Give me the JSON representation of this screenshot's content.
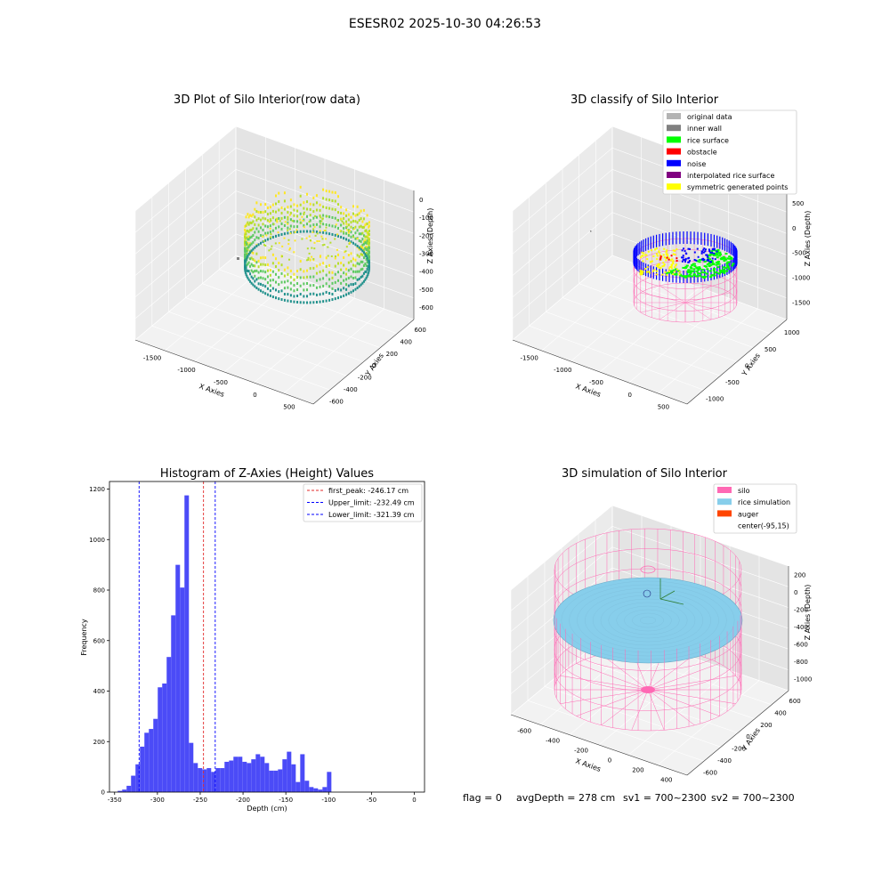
{
  "figure": {
    "suptitle": "ESESR02 2025-10-30 04:26:53",
    "footer": {
      "flag": "flag = 0",
      "avg_depth": "avgDepth = 278 cm",
      "sv1": "sv1 = 700~2300",
      "sv2": "sv2 = 700~2300"
    }
  },
  "colors": {
    "histogram_bar": "#4b4bf7",
    "first_peak": "#e32a2a",
    "limit_line": "#0000ff",
    "silo": "#ff69b4",
    "rice_simulation": "#87ceeb",
    "auger": "#ff4500"
  },
  "chart_data": [
    {
      "type": "scatter",
      "title": "3D Plot of Silo Interior(row data)",
      "xlabel": "X Axies",
      "ylabel": "Y Axies",
      "zlabel": "Z Axies (Depth)",
      "x_ticks": [
        "-1500",
        "-1000",
        "-500",
        "0",
        "500"
      ],
      "y_ticks": [
        "-600",
        "-400",
        "-200",
        "0",
        "200",
        "400",
        "600"
      ],
      "z_ticks": [
        "0",
        "-100",
        "-200",
        "-300",
        "-400",
        "-500",
        "-600"
      ]
    },
    {
      "type": "scatter",
      "title": "3D classify of Silo Interior",
      "xlabel": "X Axies",
      "ylabel": "Y Axies",
      "zlabel": "Z Axies (Depth)",
      "x_ticks": [
        "-1500",
        "-1000",
        "-500",
        "0",
        "500"
      ],
      "y_ticks": [
        "-1000",
        "-500",
        "0",
        "500",
        "1000"
      ],
      "z_ticks": [
        "500",
        "0",
        "-500",
        "-1000",
        "-1500"
      ],
      "legend": [
        {
          "label": "original data",
          "color": "#b3b3b3"
        },
        {
          "label": "inner wall",
          "color": "#808080"
        },
        {
          "label": "rice surface",
          "color": "#00ff00"
        },
        {
          "label": "obstacle",
          "color": "#ff0000"
        },
        {
          "label": "noise",
          "color": "#0000ff"
        },
        {
          "label": "interpolated rice surface",
          "color": "#800080"
        },
        {
          "label": "symmetric generated points",
          "color": "#ffff00"
        }
      ]
    },
    {
      "type": "bar",
      "title": "Histogram of Z-Axies (Height) Values",
      "xlabel": "Depth (cm)",
      "ylabel": "Frequency",
      "xlim": [
        -356,
        12
      ],
      "ylim": [
        0,
        1230
      ],
      "x_ticks": [
        -350,
        -300,
        -250,
        -200,
        -150,
        -100,
        -50,
        0
      ],
      "y_ticks": [
        0,
        200,
        400,
        600,
        800,
        1000,
        1200
      ],
      "bin_width": 5.2,
      "bin_start": -346.4,
      "values": [
        5,
        10,
        25,
        65,
        110,
        180,
        235,
        250,
        290,
        415,
        430,
        535,
        700,
        900,
        810,
        1175,
        195,
        115,
        95,
        90,
        95,
        80,
        95,
        95,
        120,
        125,
        140,
        140,
        120,
        115,
        130,
        150,
        140,
        115,
        85,
        85,
        90,
        130,
        160,
        110,
        40,
        150,
        45,
        20,
        15,
        10,
        20,
        80
      ],
      "vlines": [
        {
          "label": "first_peak: -246.17 cm",
          "x": -246.17,
          "color": "#e32a2a"
        },
        {
          "label": "Upper_limit: -232.49 cm",
          "x": -232.49,
          "color": "#0000ff"
        },
        {
          "label": "Lower_limit: -321.39 cm",
          "x": -321.39,
          "color": "#0000ff"
        }
      ]
    },
    {
      "type": "scatter",
      "title": "3D simulation of Silo Interior",
      "xlabel": "X Axies",
      "ylabel": "Y Axies",
      "zlabel": "Z Axies (Depth)",
      "x_ticks": [
        "-600",
        "-400",
        "-200",
        "0",
        "200",
        "400"
      ],
      "y_ticks": [
        "-600",
        "-400",
        "-200",
        "0",
        "200",
        "400",
        "600"
      ],
      "z_ticks": [
        "200",
        "0",
        "-200",
        "-400",
        "-600",
        "-800",
        "-1000"
      ],
      "legend": [
        {
          "label": "silo",
          "color": "#ff69b4"
        },
        {
          "label": "rice simulation",
          "color": "#87ceeb"
        },
        {
          "label": "auger",
          "color": "#ff4500"
        },
        {
          "label": "center(-95,15)",
          "color": ""
        }
      ]
    }
  ]
}
